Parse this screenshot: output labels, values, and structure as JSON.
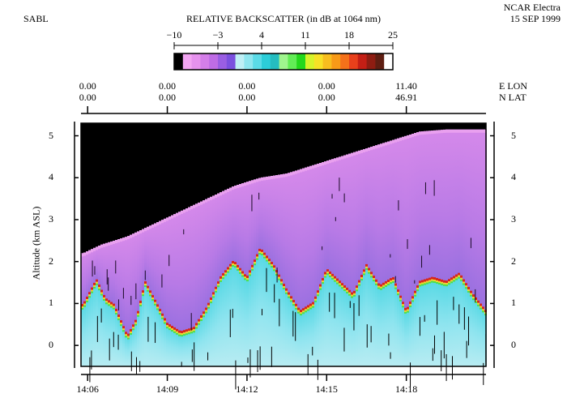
{
  "header": {
    "instrument": "SABL",
    "aircraft": "NCAR Electra",
    "date": "15 SEP 1999"
  },
  "colorbar": {
    "title": "RELATIVE BACKSCATTER (in dB at 1064 nm)",
    "ticks": [
      "−10",
      "−3",
      "4",
      "11",
      "18",
      "25"
    ],
    "colors": [
      "#000000",
      "#f3a6f3",
      "#e692ee",
      "#d47ee9",
      "#bf6ce6",
      "#9a5ee3",
      "#7b50df",
      "#bfeff5",
      "#8fe6ef",
      "#5bdbe7",
      "#2ccdd8",
      "#25bdc0",
      "#9ff58e",
      "#62ec56",
      "#23d81c",
      "#d6f32a",
      "#f7e126",
      "#f7be1f",
      "#f79a18",
      "#f5711a",
      "#e8401b",
      "#c41f15",
      "#8e1d12",
      "#5e1e12",
      "#ffffff"
    ]
  },
  "position_axis": {
    "lon_label": "E LON",
    "lat_label": "N LAT",
    "ticks": [
      {
        "lon": "0.00",
        "lat": "0.00"
      },
      {
        "lon": "0.00",
        "lat": "0.00"
      },
      {
        "lon": "0.00",
        "lat": "0.00"
      },
      {
        "lon": "0.00",
        "lat": "0.00"
      },
      {
        "lon": "11.40",
        "lat": "46.91"
      }
    ]
  },
  "chart_data": {
    "type": "heatmap",
    "title": "RELATIVE BACKSCATTER (in dB at 1064 nm)",
    "ylabel": "Altitude (km ASL)",
    "ylim": [
      -0.5,
      5.3
    ],
    "xlim": [
      "14:05:45",
      "14:21:00"
    ],
    "x_ticks": [
      "14:06",
      "14:09",
      "14:12",
      "14:15",
      "14:18"
    ],
    "y_ticks": [
      "0",
      "1",
      "2",
      "3",
      "4",
      "5"
    ],
    "value_range_db": [
      -10,
      25
    ],
    "aerosol_layer_top_km": {
      "x": [
        "14:05:50",
        "14:06:30",
        "14:07:30",
        "14:08:30",
        "14:09:30",
        "14:10:30",
        "14:11:30",
        "14:12:30",
        "14:13:30",
        "14:14:30",
        "14:15:30",
        "14:16:30",
        "14:17:30",
        "14:18:30",
        "14:19:30",
        "14:20:30",
        "14:21:00"
      ],
      "y": [
        2.2,
        2.4,
        2.6,
        2.9,
        3.2,
        3.5,
        3.8,
        4.0,
        4.1,
        4.3,
        4.5,
        4.7,
        4.9,
        5.1,
        5.15,
        5.15,
        5.15
      ]
    },
    "boundary_layer_top_km": {
      "x": [
        "14:05:50",
        "14:06:20",
        "14:06:40",
        "14:07:00",
        "14:07:30",
        "14:07:50",
        "14:08:10",
        "14:08:40",
        "14:09:00",
        "14:09:30",
        "14:10:00",
        "14:10:30",
        "14:11:00",
        "14:11:30",
        "14:12:00",
        "14:12:30",
        "14:13:00",
        "14:13:30",
        "14:14:00",
        "14:14:30",
        "14:15:00",
        "14:15:30",
        "14:16:00",
        "14:16:30",
        "14:17:00",
        "14:17:30",
        "14:18:00",
        "14:18:30",
        "14:19:00",
        "14:19:30",
        "14:20:00",
        "14:20:30",
        "14:21:00"
      ],
      "y": [
        0.95,
        1.55,
        1.1,
        0.95,
        0.2,
        0.6,
        1.5,
        0.9,
        0.5,
        0.3,
        0.4,
        0.9,
        1.6,
        2.0,
        1.6,
        2.3,
        1.9,
        1.3,
        0.8,
        1.0,
        1.8,
        1.5,
        1.2,
        1.9,
        1.4,
        1.6,
        0.8,
        1.5,
        1.6,
        1.5,
        1.7,
        1.2,
        0.8
      ]
    }
  }
}
